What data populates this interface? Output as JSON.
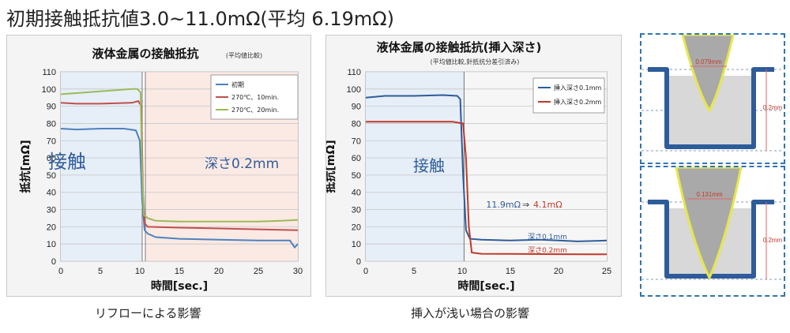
{
  "headline": "初期接触抵抗値3.0~11.0mΩ(平均 6.19mΩ)",
  "captions": {
    "left": "リフローによる影響",
    "right": "挿入が浅い場合の影響"
  },
  "chart_data": [
    {
      "type": "line",
      "title": "液体金属の接触抵抗",
      "subtitle": "(平均値比較)",
      "xlabel": "時間[sec.]",
      "ylabel": "抵抗[mΩ]",
      "xlim": [
        0,
        30
      ],
      "ylim": [
        0,
        110
      ],
      "xticks": [
        0,
        5,
        10,
        15,
        20,
        25,
        30
      ],
      "yticks": [
        0,
        10,
        20,
        30,
        40,
        50,
        60,
        70,
        80,
        90,
        100,
        110
      ],
      "grid": true,
      "legend": "top-right",
      "regions": [
        {
          "label": "接触",
          "x": [
            0,
            10.3
          ],
          "color": "#e6eef7"
        },
        {
          "label": "深さ0.2mm",
          "x": [
            10.7,
            30
          ],
          "color": "#fbe9e4"
        }
      ],
      "region_dividers": [
        10.3,
        10.7
      ],
      "series": [
        {
          "name": "初期",
          "color": "#4f81bd",
          "points": [
            [
              0,
              77
            ],
            [
              2,
              76.5
            ],
            [
              5,
              77
            ],
            [
              8,
              77
            ],
            [
              9.5,
              76
            ],
            [
              10,
              70
            ],
            [
              10.3,
              35
            ],
            [
              10.6,
              18
            ],
            [
              11,
              16
            ],
            [
              12,
              14
            ],
            [
              15,
              13
            ],
            [
              20,
              12.5
            ],
            [
              25,
              12
            ],
            [
              29,
              12
            ],
            [
              29.6,
              8
            ],
            [
              30,
              10
            ]
          ]
        },
        {
          "name": "270℃、10min.",
          "color": "#c0504d",
          "points": [
            [
              0,
              92
            ],
            [
              2,
              91.5
            ],
            [
              5,
              91.5
            ],
            [
              9,
              92
            ],
            [
              9.8,
              93
            ],
            [
              10.2,
              90
            ],
            [
              10.4,
              40
            ],
            [
              10.6,
              22
            ],
            [
              11,
              20
            ],
            [
              15,
              19.5
            ],
            [
              20,
              19
            ],
            [
              25,
              18.5
            ],
            [
              30,
              18
            ]
          ]
        },
        {
          "name": "270℃、20min.",
          "color": "#9bbb59",
          "points": [
            [
              0,
              97
            ],
            [
              3,
              98
            ],
            [
              6,
              99
            ],
            [
              9,
              100
            ],
            [
              9.7,
              100
            ],
            [
              10.1,
              98
            ],
            [
              10.3,
              50
            ],
            [
              10.5,
              27
            ],
            [
              11,
              25
            ],
            [
              12,
              23.5
            ],
            [
              15,
              23
            ],
            [
              20,
              23
            ],
            [
              25,
              23
            ],
            [
              28,
              23.5
            ],
            [
              30,
              24
            ]
          ]
        }
      ]
    },
    {
      "type": "line",
      "title": "液体金属の接触抵抗(挿入深さ)",
      "subtitle": "(平均値比較,針抵抗分差引済み)",
      "xlabel": "時間[sec.]",
      "ylabel": "抵抗[mΩ]",
      "xlim": [
        0,
        25
      ],
      "ylim": [
        0,
        110
      ],
      "xticks": [
        0,
        5,
        10,
        15,
        20,
        25
      ],
      "yticks": [
        0,
        10,
        20,
        30,
        40,
        50,
        60,
        70,
        80,
        90,
        100,
        110
      ],
      "grid": true,
      "legend": "top-right",
      "regions": [
        {
          "label": "接触",
          "x": [
            0,
            10.2
          ],
          "color": "#e6eef7"
        },
        {
          "label": "",
          "x": [
            10.2,
            25
          ],
          "color": "#f6f6f6"
        }
      ],
      "region_dividers": [
        10.2
      ],
      "annotations": [
        {
          "text": "11.9mΩ",
          "color": "#2e5c9a"
        },
        {
          "text": "⇒",
          "color": "#333333"
        },
        {
          "text": "4.1mΩ",
          "color": "#c0392b"
        },
        {
          "text": "深さ0.1mm",
          "color": "#2e5c9a"
        },
        {
          "text": "深さ0.2mm",
          "color": "#c0392b"
        }
      ],
      "series": [
        {
          "name": "挿入深さ0.1mm",
          "color": "#2e5c9a",
          "points": [
            [
              0,
              95
            ],
            [
              2,
              96
            ],
            [
              5,
              96
            ],
            [
              8,
              96.5
            ],
            [
              9.5,
              96
            ],
            [
              9.8,
              94
            ],
            [
              10.1,
              50
            ],
            [
              10.4,
              18
            ],
            [
              10.8,
              13
            ],
            [
              12,
              12.5
            ],
            [
              15,
              12
            ],
            [
              18,
              12.5
            ],
            [
              20,
              12
            ],
            [
              22,
              11.5
            ],
            [
              25,
              12
            ]
          ]
        },
        {
          "name": "挿入深さ0.2mm",
          "color": "#c0392b",
          "points": [
            [
              0,
              81
            ],
            [
              3,
              81
            ],
            [
              6,
              81
            ],
            [
              9,
              81
            ],
            [
              10.1,
              80
            ],
            [
              10.4,
              60
            ],
            [
              10.7,
              20
            ],
            [
              11,
              5
            ],
            [
              12,
              4.3
            ],
            [
              15,
              4.2
            ],
            [
              20,
              4.1
            ],
            [
              23,
              4
            ],
            [
              25,
              4
            ]
          ]
        }
      ]
    }
  ],
  "diagrams": [
    {
      "dimension": "0.079mm",
      "depth": "0.2mm"
    },
    {
      "dimension": "0.131mm",
      "depth": "0.2mm"
    }
  ]
}
